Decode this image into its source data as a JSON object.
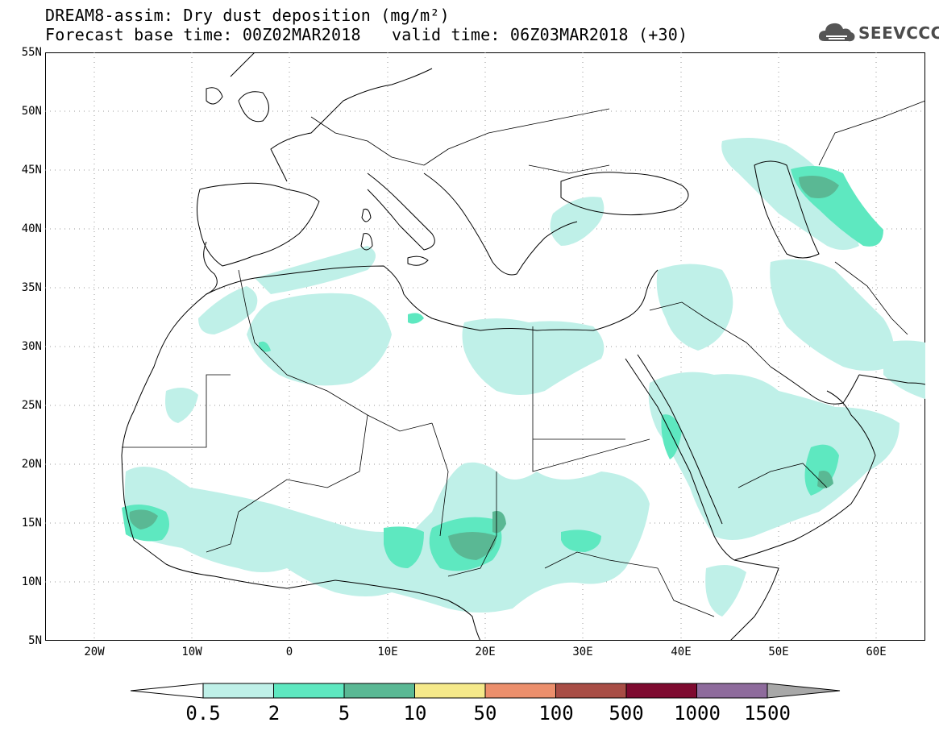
{
  "header": {
    "title": "DREAM8-assim: Dry dust deposition (mg/m²)",
    "base_time": "Forecast base time: 00Z02MAR2018",
    "valid_time": "valid time: 06Z03MAR2018 (+30)"
  },
  "brand": {
    "name": "SEEVCCC",
    "icon": "cloud-logo-icon"
  },
  "map": {
    "lat_range": [
      5,
      55
    ],
    "lon_range": [
      -25,
      65
    ],
    "lat_labels": [
      "55N",
      "50N",
      "45N",
      "40N",
      "35N",
      "30N",
      "25N",
      "20N",
      "15N",
      "10N",
      "5N"
    ],
    "lon_labels": [
      "20W",
      "10W",
      "0",
      "10E",
      "20E",
      "30E",
      "40E",
      "50E",
      "60E"
    ],
    "grid": "dotted"
  },
  "legend": {
    "labels": [
      "0.5",
      "2",
      "5",
      "10",
      "50",
      "100",
      "500",
      "1000",
      "1500"
    ],
    "colors": [
      "#bff0e8",
      "#5ee8c0",
      "#5ab894",
      "#f5e98a",
      "#ec8f6c",
      "#a84d45",
      "#7e0a30",
      "#8e6b9c",
      "#a8a8a8"
    ],
    "unit": "mg/m²"
  },
  "colors": {
    "dep_light": "#bff0e8",
    "dep_mid": "#5ee8c0",
    "dep_dark": "#5ab894"
  }
}
